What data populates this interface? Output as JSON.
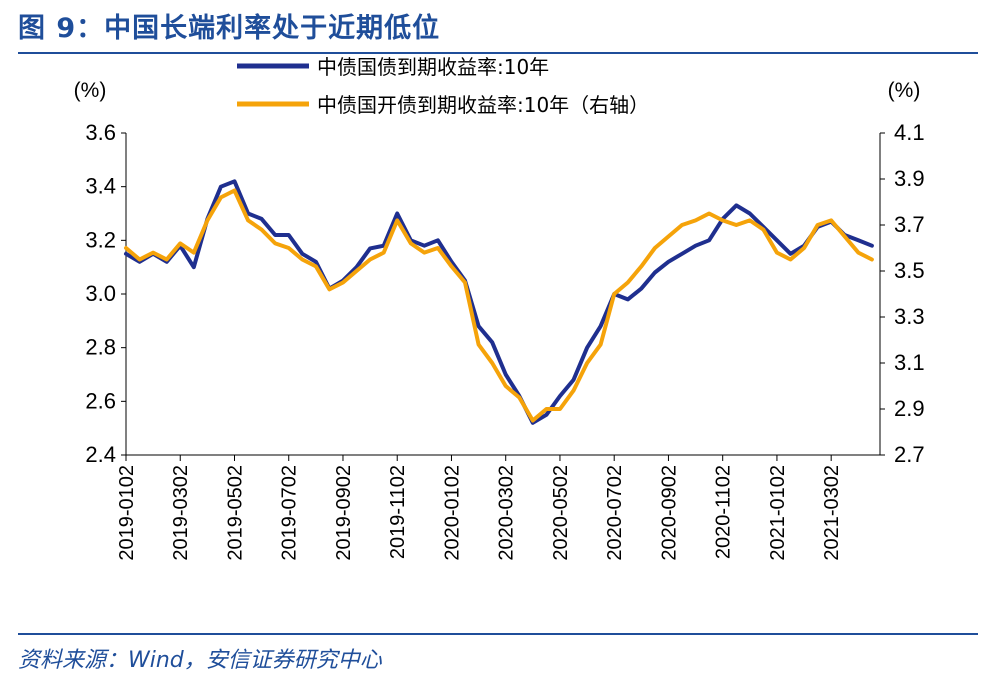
{
  "title": "图 9：中国长端利率处于近期低位",
  "source": "资料来源：Wind，安信证券研究中心",
  "colors": {
    "accent": "#1f4e9a",
    "series1": "#1f2f8f",
    "series2": "#f5a30a"
  },
  "chart_data": {
    "type": "line",
    "y_left": {
      "unit": "(%)",
      "ylim": [
        2.4,
        3.6
      ],
      "ticks": [
        "3.6",
        "3.4",
        "3.2",
        "3.0",
        "2.8",
        "2.6",
        "2.4"
      ]
    },
    "y_right": {
      "unit": "(%)",
      "ylim": [
        2.7,
        4.1
      ],
      "ticks": [
        "4.1",
        "3.9",
        "3.7",
        "3.5",
        "3.3",
        "3.1",
        "2.9",
        "2.7"
      ]
    },
    "x_ticks": [
      "2019-0102",
      "2019-0302",
      "2019-0502",
      "2019-0702",
      "2019-0902",
      "2019-1102",
      "2020-0102",
      "2020-0302",
      "2020-0502",
      "2020-0702",
      "2020-0902",
      "2020-1102",
      "2021-0102",
      "2021-0302"
    ],
    "grid": false,
    "legend_position": "top-center",
    "series": [
      {
        "name": "中债国债到期收益率:10年",
        "axis": "left",
        "x": [
          "2019-01",
          "2019-01",
          "2019-02",
          "2019-02",
          "2019-03",
          "2019-03",
          "2019-04",
          "2019-04",
          "2019-05",
          "2019-05",
          "2019-06",
          "2019-06",
          "2019-07",
          "2019-07",
          "2019-08",
          "2019-08",
          "2019-09",
          "2019-09",
          "2019-10",
          "2019-10",
          "2019-11",
          "2019-11",
          "2019-12",
          "2019-12",
          "2020-01",
          "2020-01",
          "2020-02",
          "2020-02",
          "2020-03",
          "2020-03",
          "2020-04",
          "2020-04",
          "2020-05",
          "2020-05",
          "2020-06",
          "2020-06",
          "2020-07",
          "2020-07",
          "2020-08",
          "2020-08",
          "2020-09",
          "2020-09",
          "2020-10",
          "2020-10",
          "2020-11",
          "2020-11",
          "2020-12",
          "2020-12",
          "2021-01",
          "2021-01",
          "2021-02",
          "2021-02",
          "2021-03",
          "2021-03",
          "2021-04",
          "2021-04"
        ],
        "values": [
          3.15,
          3.12,
          3.15,
          3.12,
          3.18,
          3.1,
          3.28,
          3.4,
          3.42,
          3.3,
          3.28,
          3.22,
          3.22,
          3.15,
          3.12,
          3.02,
          3.05,
          3.1,
          3.17,
          3.18,
          3.3,
          3.2,
          3.18,
          3.2,
          3.12,
          3.05,
          2.88,
          2.82,
          2.7,
          2.62,
          2.52,
          2.55,
          2.62,
          2.68,
          2.8,
          2.88,
          3.0,
          2.98,
          3.02,
          3.08,
          3.12,
          3.15,
          3.18,
          3.2,
          3.28,
          3.33,
          3.3,
          3.25,
          3.2,
          3.15,
          3.18,
          3.25,
          3.27,
          3.22,
          3.2,
          3.18
        ]
      },
      {
        "name": "中债国开债到期收益率:10年（右轴）",
        "axis": "right",
        "x": [
          "2019-01",
          "2019-01",
          "2019-02",
          "2019-02",
          "2019-03",
          "2019-03",
          "2019-04",
          "2019-04",
          "2019-05",
          "2019-05",
          "2019-06",
          "2019-06",
          "2019-07",
          "2019-07",
          "2019-08",
          "2019-08",
          "2019-09",
          "2019-09",
          "2019-10",
          "2019-10",
          "2019-11",
          "2019-11",
          "2019-12",
          "2019-12",
          "2020-01",
          "2020-01",
          "2020-02",
          "2020-02",
          "2020-03",
          "2020-03",
          "2020-04",
          "2020-04",
          "2020-05",
          "2020-05",
          "2020-06",
          "2020-06",
          "2020-07",
          "2020-07",
          "2020-08",
          "2020-08",
          "2020-09",
          "2020-09",
          "2020-10",
          "2020-10",
          "2020-11",
          "2020-11",
          "2020-12",
          "2020-12",
          "2021-01",
          "2021-01",
          "2021-02",
          "2021-02",
          "2021-03",
          "2021-03",
          "2021-04",
          "2021-04"
        ],
        "values": [
          3.6,
          3.55,
          3.58,
          3.55,
          3.62,
          3.58,
          3.72,
          3.82,
          3.85,
          3.72,
          3.68,
          3.62,
          3.6,
          3.55,
          3.52,
          3.42,
          3.45,
          3.5,
          3.55,
          3.58,
          3.72,
          3.62,
          3.58,
          3.6,
          3.52,
          3.45,
          3.18,
          3.1,
          3.0,
          2.95,
          2.85,
          2.9,
          2.9,
          2.98,
          3.1,
          3.18,
          3.4,
          3.45,
          3.52,
          3.6,
          3.65,
          3.7,
          3.72,
          3.75,
          3.72,
          3.7,
          3.72,
          3.68,
          3.58,
          3.55,
          3.6,
          3.7,
          3.72,
          3.65,
          3.58,
          3.55
        ]
      }
    ]
  }
}
